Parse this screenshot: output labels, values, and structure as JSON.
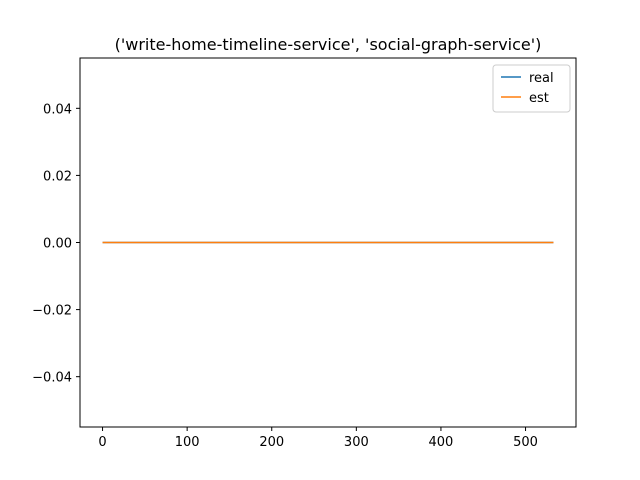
{
  "chart_data": {
    "type": "line",
    "title": "('write-home-timeline-service', 'social-graph-service')",
    "xlabel": "",
    "ylabel": "",
    "xlim": [
      -26.65,
      559.65
    ],
    "ylim": [
      -0.055,
      0.055
    ],
    "x_ticks": [
      {
        "value": 0,
        "label": "0"
      },
      {
        "value": 100,
        "label": "100"
      },
      {
        "value": 200,
        "label": "200"
      },
      {
        "value": 300,
        "label": "300"
      },
      {
        "value": 400,
        "label": "400"
      },
      {
        "value": 500,
        "label": "500"
      }
    ],
    "y_ticks": [
      {
        "value": 0.04,
        "label": "0.04"
      },
      {
        "value": 0.02,
        "label": "0.02"
      },
      {
        "value": 0.0,
        "label": "0.00"
      },
      {
        "value": -0.02,
        "label": "−0.02"
      },
      {
        "value": -0.04,
        "label": "−0.04"
      }
    ],
    "grid": false,
    "legend_position": "top-right",
    "series": [
      {
        "name": "real",
        "color": "#1f77b4",
        "x": [
          0,
          533
        ],
        "y": [
          0,
          0
        ]
      },
      {
        "name": "est",
        "color": "#ff7f0e",
        "x": [
          0,
          533
        ],
        "y": [
          0,
          0
        ]
      }
    ]
  }
}
